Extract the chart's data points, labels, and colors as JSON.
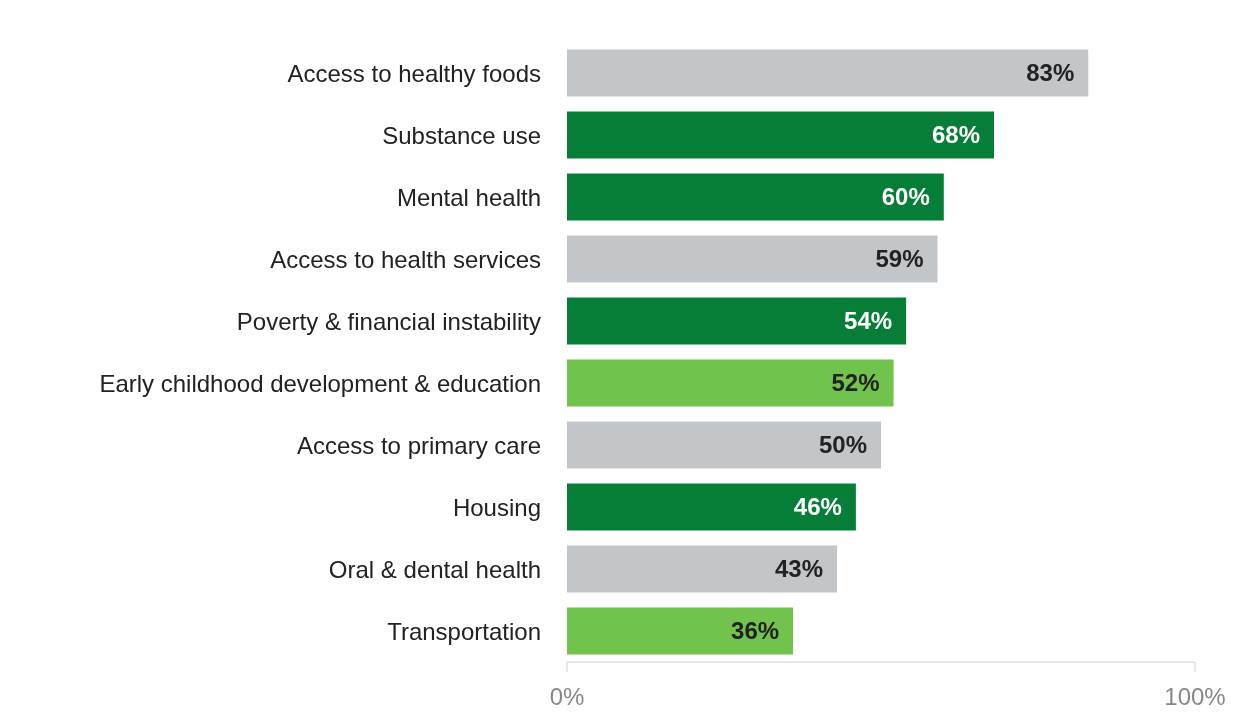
{
  "chart_data": {
    "type": "bar",
    "orientation": "horizontal",
    "categories": [
      "Access to healthy foods",
      "Substance use",
      "Mental health",
      "Access to health services",
      "Poverty & financial instability",
      "Early childhood development & education",
      "Access to primary care",
      "Housing",
      "Oral & dental health",
      "Transportation"
    ],
    "values": [
      83,
      68,
      60,
      59,
      54,
      52,
      50,
      46,
      43,
      36
    ],
    "colors": [
      "#c3c6c8",
      "#077e37",
      "#077e37",
      "#c3c6c8",
      "#077e37",
      "#72c24e",
      "#c3c6c8",
      "#077e37",
      "#c3c6c8",
      "#72c24e"
    ],
    "value_labels": [
      "83%",
      "68%",
      "60%",
      "59%",
      "54%",
      "52%",
      "50%",
      "46%",
      "43%",
      "36%"
    ],
    "xlim": [
      0,
      100
    ],
    "xticks": [
      {
        "value": 0,
        "label": "0%"
      },
      {
        "value": 100,
        "label": "100%"
      }
    ],
    "grid": false
  }
}
